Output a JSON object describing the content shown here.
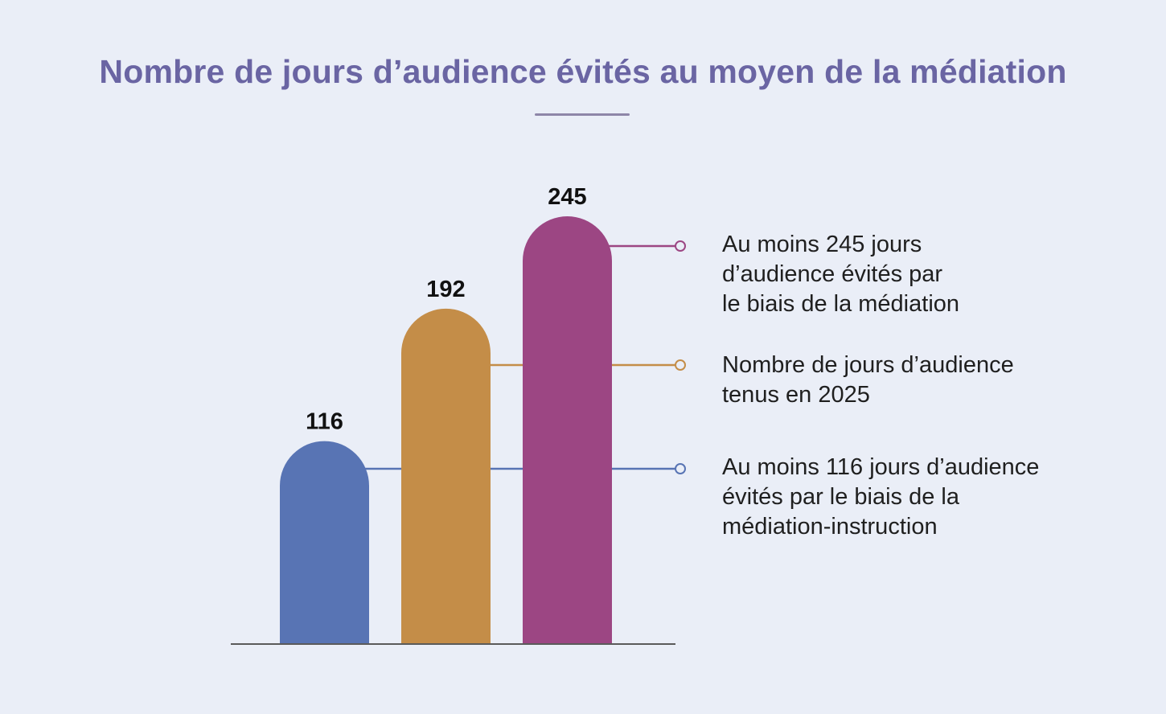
{
  "title": "Nombre de jours d’audience évités au moyen de la médiation",
  "chart_data": {
    "type": "bar",
    "title": "Nombre de jours d’audience évités au moyen de la médiation",
    "values": [
      116,
      192,
      245
    ],
    "value_labels": [
      "116",
      "192",
      "245"
    ],
    "colors": [
      "#5874b4",
      "#c48d48",
      "#9c4683"
    ],
    "ylim": [
      0,
      245
    ],
    "grid": false,
    "legend_position": "right",
    "legend": [
      {
        "text": "Au moins 245 jours\nd’audience évités par\nle biais de la médiation",
        "color": "#9c4683",
        "refers_to_value": 245
      },
      {
        "text": "Nombre de jours d’audience\ntenus en 2025",
        "color": "#c48d48",
        "refers_to_value": 192
      },
      {
        "text": "Au moins 116 jours d’audience\névités par le biais de la\nmédiation-instruction",
        "color": "#5874b4",
        "refers_to_value": 116
      }
    ]
  }
}
